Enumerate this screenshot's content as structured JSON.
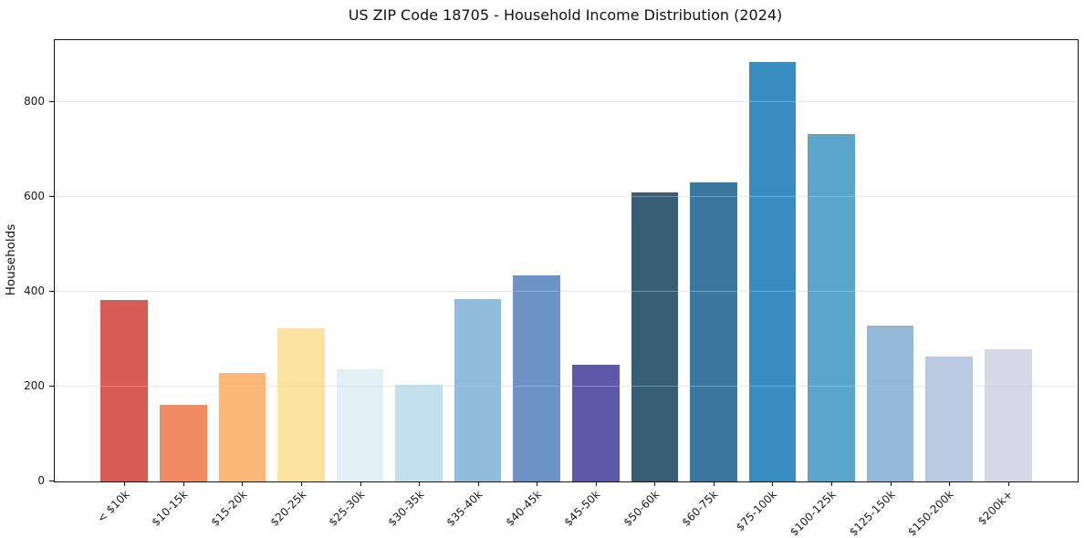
{
  "chart_data": {
    "type": "bar",
    "title": "US ZIP Code 18705 - Household Income Distribution (2024)",
    "xlabel": "",
    "ylabel": "Households",
    "categories": [
      "< $10k",
      "$10-15k",
      "$15-20k",
      "$20-25k",
      "$25-30k",
      "$30-35k",
      "$35-40k",
      "$40-45k",
      "$45-50k",
      "$50-60k",
      "$60-75k",
      "$75-100k",
      "$100-125k",
      "$125-150k",
      "$150-200k",
      "$200k+"
    ],
    "values": [
      383,
      162,
      229,
      323,
      237,
      203,
      385,
      434,
      246,
      609,
      631,
      883,
      733,
      329,
      263,
      279
    ],
    "bar_colors": [
      "#d85c54",
      "#f08a62",
      "#fbb877",
      "#fde3a1",
      "#e3f0f6",
      "#c2e0ee",
      "#92bcdb",
      "#6b93c4",
      "#5c5aa8",
      "#375e74",
      "#3979a0",
      "#388dc0",
      "#5ba4cb",
      "#93b8d8",
      "#b9c9e1",
      "#d7d9e6"
    ],
    "ylim": [
      0,
      930
    ],
    "yticks": [
      0,
      200,
      400,
      600,
      800
    ],
    "grid": "horizontal",
    "legend": "none",
    "background_color": "#ffffff",
    "spine_color": "#141414",
    "grid_color": "#e8e8e8",
    "xtick_rotation_deg": 45
  }
}
